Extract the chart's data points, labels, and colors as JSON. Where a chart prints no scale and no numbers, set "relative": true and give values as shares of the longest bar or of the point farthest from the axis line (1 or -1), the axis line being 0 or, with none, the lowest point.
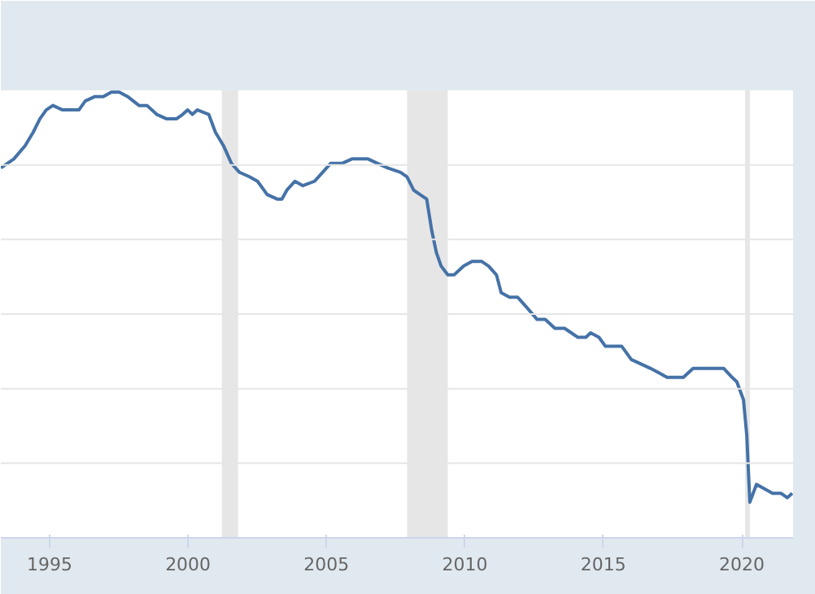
{
  "chart_data": {
    "type": "line",
    "relative": true,
    "grid": "y",
    "xlim": [
      1993.24,
      2021.85
    ],
    "xticks": [
      1995,
      2000,
      2005,
      2010,
      2015,
      2020
    ],
    "bands": [
      {
        "axis": "x",
        "from": 2001.22,
        "to": 2001.81,
        "color": "#e6e6e6"
      },
      {
        "axis": "x",
        "from": 2007.91,
        "to": 2009.38,
        "color": "#e6e6e6"
      },
      {
        "axis": "x",
        "from": 2020.12,
        "to": 2020.29,
        "color": "#e6e6e6"
      }
    ],
    "series": [
      {
        "color": "#4572a7",
        "x": [
          1993.24,
          1993.71,
          1994.12,
          1994.41,
          1994.65,
          1994.88,
          1995.12,
          1995.47,
          1995.7,
          1996.06,
          1996.29,
          1996.64,
          1996.94,
          1997.23,
          1997.52,
          1997.82,
          1998.23,
          1998.52,
          1998.87,
          1999.23,
          1999.58,
          1999.81,
          1999.99,
          2000.16,
          2000.34,
          2000.75,
          2000.99,
          2001.28,
          2001.57,
          2001.86,
          2002.22,
          2002.51,
          2002.86,
          2003.22,
          2003.39,
          2003.57,
          2003.86,
          2004.15,
          2004.57,
          2004.86,
          2005.15,
          2005.56,
          2005.92,
          2006.15,
          2006.5,
          2006.85,
          2007.21,
          2007.68,
          2007.91,
          2008.15,
          2008.38,
          2008.62,
          2008.8,
          2008.97,
          2009.14,
          2009.38,
          2009.61,
          2009.96,
          2010.26,
          2010.61,
          2010.85,
          2011.14,
          2011.31,
          2011.61,
          2011.9,
          2012.19,
          2012.61,
          2012.9,
          2013.25,
          2013.6,
          2013.84,
          2014.07,
          2014.37,
          2014.54,
          2014.84,
          2015.07,
          2015.36,
          2015.66,
          2016.01,
          2016.36,
          2016.71,
          2017.01,
          2017.3,
          2017.54,
          2017.89,
          2018.24,
          2018.47,
          2018.83,
          2019.12,
          2019.35,
          2019.65,
          2019.82,
          2020.06,
          2020.18,
          2020.29,
          2020.53,
          2020.82,
          2021.11,
          2021.41,
          2021.64,
          2021.82
        ],
        "values": [
          0.83,
          0.85,
          0.88,
          0.91,
          0.94,
          0.96,
          0.97,
          0.96,
          0.96,
          0.96,
          0.98,
          0.99,
          0.99,
          1.0,
          1.0,
          0.99,
          0.97,
          0.97,
          0.95,
          0.94,
          0.94,
          0.95,
          0.96,
          0.95,
          0.96,
          0.95,
          0.91,
          0.88,
          0.84,
          0.82,
          0.81,
          0.8,
          0.77,
          0.76,
          0.76,
          0.78,
          0.8,
          0.79,
          0.8,
          0.82,
          0.84,
          0.84,
          0.85,
          0.85,
          0.85,
          0.84,
          0.83,
          0.82,
          0.81,
          0.78,
          0.77,
          0.76,
          0.69,
          0.64,
          0.61,
          0.59,
          0.59,
          0.61,
          0.62,
          0.62,
          0.61,
          0.59,
          0.55,
          0.54,
          0.54,
          0.52,
          0.49,
          0.49,
          0.47,
          0.47,
          0.46,
          0.45,
          0.45,
          0.46,
          0.45,
          0.43,
          0.43,
          0.43,
          0.4,
          0.39,
          0.38,
          0.37,
          0.36,
          0.36,
          0.36,
          0.38,
          0.38,
          0.38,
          0.38,
          0.38,
          0.36,
          0.35,
          0.31,
          0.23,
          0.08,
          0.12,
          0.11,
          0.1,
          0.1,
          0.09,
          0.1
        ]
      }
    ]
  }
}
